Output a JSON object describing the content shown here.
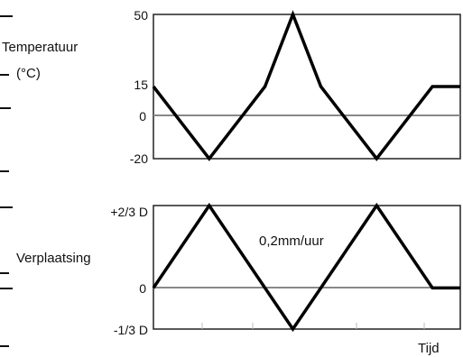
{
  "chart_data": [
    {
      "type": "line",
      "ylabel": "Temperatuur",
      "yunit": "(°C)",
      "yticks": [
        "50",
        "15",
        "0",
        "-20"
      ],
      "ylim": [
        -20,
        50
      ],
      "x": [
        0,
        1,
        2,
        2.5,
        3,
        4,
        5,
        5.5
      ],
      "series": [
        {
          "values": [
            15,
            -20,
            15,
            50,
            15,
            -20,
            15,
            15
          ]
        }
      ],
      "grid": "horizontal lines at 0, 50 and -20",
      "color": "#000000"
    },
    {
      "type": "line",
      "ylabel": "Verplaatsing",
      "yticks": [
        "+2/3 D",
        "0",
        "-1/3 D"
      ],
      "ytick_values": [
        0.667,
        0,
        -0.333
      ],
      "ylim": [
        -0.333,
        0.667
      ],
      "x": [
        0,
        1,
        2,
        2.5,
        3,
        4,
        5,
        5.5
      ],
      "series": [
        {
          "values": [
            0,
            0.667,
            0,
            -0.333,
            0,
            0.667,
            0,
            0
          ]
        }
      ],
      "annotation": "0,2mm/uur",
      "xlabel": "Tijd",
      "grid": "horizontal lines at +2/3 D, 0 and -1/3 D",
      "color": "#000000"
    }
  ]
}
